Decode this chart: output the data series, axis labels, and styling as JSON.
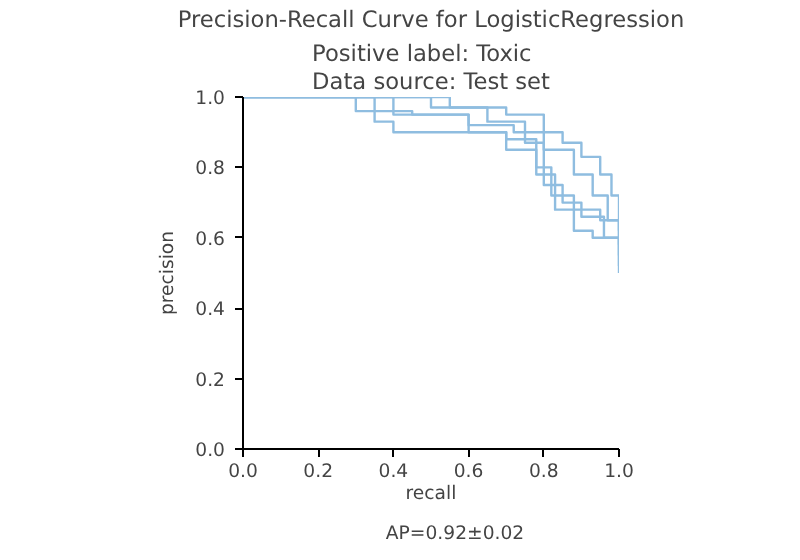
{
  "chart_data": {
    "type": "step",
    "title": "Precision-Recall Curve for LogisticRegression",
    "subtitle": "Positive label: Toxic\nData source: Test set",
    "xlabel": "recall",
    "ylabel": "precision",
    "xlim": [
      0,
      1
    ],
    "ylim": [
      0,
      1
    ],
    "xticks": [
      {
        "value": 0,
        "label": "0.0"
      },
      {
        "value": 0.2,
        "label": "0.2"
      },
      {
        "value": 0.4,
        "label": "0.4"
      },
      {
        "value": 0.6,
        "label": "0.6"
      },
      {
        "value": 0.8,
        "label": "0.8"
      },
      {
        "value": 1,
        "label": "1.0"
      }
    ],
    "yticks": [
      {
        "value": 0,
        "label": "0.0"
      },
      {
        "value": 0.2,
        "label": "0.2"
      },
      {
        "value": 0.4,
        "label": "0.4"
      },
      {
        "value": 0.6,
        "label": "0.6"
      },
      {
        "value": 0.8,
        "label": "0.8"
      },
      {
        "value": 1,
        "label": "1.0"
      }
    ],
    "grid": false,
    "legend": "bottom",
    "series": [
      {
        "name": "AP=0.92±0.02",
        "color": "#8fbde0",
        "x": [
          0,
          0.55,
          0.7,
          0.8,
          0.85,
          0.9,
          0.95,
          0.98,
          1.0
        ],
        "values": [
          1,
          0.97,
          0.95,
          0.9,
          0.87,
          0.83,
          0.78,
          0.72,
          0.62
        ]
      },
      {
        "color": "#8fbde0",
        "x": [
          0,
          0.3,
          0.45,
          0.6,
          0.72,
          0.8,
          0.88,
          0.93,
          0.97,
          1.0
        ],
        "values": [
          1,
          0.96,
          0.95,
          0.92,
          0.9,
          0.85,
          0.78,
          0.72,
          0.65,
          0.58
        ]
      },
      {
        "color": "#8fbde0",
        "x": [
          0,
          0.35,
          0.4,
          0.6,
          0.7,
          0.78,
          0.82,
          0.88,
          0.95,
          1.0
        ],
        "values": [
          1,
          0.93,
          0.9,
          0.9,
          0.88,
          0.8,
          0.72,
          0.68,
          0.65,
          0.5
        ]
      },
      {
        "color": "#8fbde0",
        "x": [
          0,
          0.5,
          0.65,
          0.75,
          0.8,
          0.85,
          0.9,
          0.96,
          1.0
        ],
        "values": [
          1,
          0.97,
          0.93,
          0.87,
          0.75,
          0.7,
          0.66,
          0.6,
          0.55
        ]
      },
      {
        "color": "#8fbde0",
        "x": [
          0,
          0.4,
          0.6,
          0.7,
          0.78,
          0.83,
          0.88,
          0.93,
          1.0
        ],
        "values": [
          1,
          0.95,
          0.9,
          0.85,
          0.78,
          0.68,
          0.62,
          0.6,
          0.52
        ]
      }
    ]
  }
}
